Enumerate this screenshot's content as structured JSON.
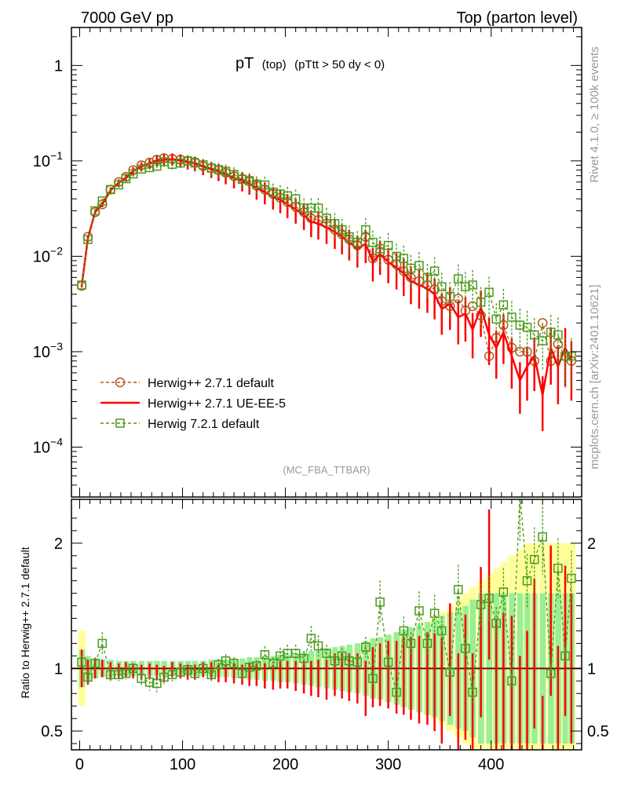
{
  "header": {
    "left": "7000 GeV pp",
    "right": "Top (parton level)"
  },
  "side_labels": {
    "rivet": "Rivet 4.1.0, ≥ 100k events",
    "mcplots": "mcplots.cern.ch [arXiv:2401.10621]"
  },
  "plot_title": {
    "main": "pT",
    "sub1": "(top)",
    "sub2": "(pTtt > 50 dy < 0)"
  },
  "analysis_label": "(MC_FBA_TTBAR)",
  "ratio_ylabel": "Ratio to Herwig++ 2.7.1 default",
  "colors": {
    "herwig_pp_default": "#b35a1f",
    "herwig_pp_ueee5": "#ff0000",
    "herwig7_default": "#4a9a1a",
    "band_yellow": "#ffff99",
    "band_green": "#99ee99",
    "axis": "#000000",
    "ratio_line": "#8b0000",
    "muted_text": "#999999"
  },
  "chart_data": [
    {
      "type": "line",
      "panel": "main",
      "xlim": [
        -8,
        488
      ],
      "ylim": [
        3e-05,
        2.5
      ],
      "yscale": "log",
      "x_ticks": [
        0,
        100,
        200,
        300,
        400
      ],
      "y_tick_labels": [
        {
          "value": 1,
          "base": "1",
          "exp": ""
        },
        {
          "value": 0.1,
          "base": "10",
          "exp": "−1"
        },
        {
          "value": 0.01,
          "base": "10",
          "exp": "−2"
        },
        {
          "value": 0.001,
          "base": "10",
          "exp": "−3"
        },
        {
          "value": 0.0001,
          "base": "10",
          "exp": "−4"
        }
      ],
      "legend": [
        {
          "label": "Herwig++ 2.7.1 default",
          "series": "herwig_pp_default"
        },
        {
          "label": "Herwig++ 2.7.1 UE-EE-5",
          "series": "herwig_pp_ueee5"
        },
        {
          "label": "Herwig 7.2.1 default",
          "series": "herwig7_default"
        }
      ],
      "series": [
        {
          "name": "Herwig++ 2.7.1 default",
          "key": "herwig_pp_default",
          "marker": "circle",
          "line": "dashed",
          "x": [
            2,
            8,
            15,
            22,
            30,
            38,
            45,
            52,
            60,
            68,
            75,
            82,
            90,
            98,
            105,
            112,
            120,
            128,
            135,
            142,
            150,
            158,
            165,
            172,
            180,
            188,
            195,
            202,
            210,
            218,
            225,
            232,
            240,
            248,
            255,
            262,
            270,
            278,
            285,
            292,
            300,
            308,
            315,
            322,
            330,
            338,
            345,
            352,
            360,
            368,
            375,
            382,
            390,
            398,
            405,
            412,
            420,
            428,
            435,
            442,
            450,
            458,
            465,
            472,
            478
          ],
          "y": [
            0.0049,
            0.016,
            0.029,
            0.035,
            0.05,
            0.06,
            0.068,
            0.08,
            0.09,
            0.096,
            0.103,
            0.107,
            0.105,
            0.103,
            0.1,
            0.097,
            0.088,
            0.084,
            0.08,
            0.075,
            0.069,
            0.065,
            0.061,
            0.055,
            0.05,
            0.045,
            0.041,
            0.037,
            0.033,
            0.029,
            0.025,
            0.024,
            0.022,
            0.019,
            0.017,
            0.015,
            0.013,
            0.016,
            0.0095,
            0.011,
            0.0092,
            0.0082,
            0.007,
            0.006,
            0.0055,
            0.005,
            0.0045,
            0.0034,
            0.003,
            0.0036,
            0.0027,
            0.003,
            0.0024,
            0.0009,
            0.0014,
            0.0019,
            0.0011,
            0.001,
            0.001,
            0.0008,
            0.002,
            0.0008,
            0.0012,
            0.0009,
            0.0008
          ]
        },
        {
          "name": "Herwig++ 2.7.1 UE-EE-5",
          "key": "herwig_pp_ueee5",
          "marker": "none",
          "line": "solid",
          "x": [
            2,
            8,
            15,
            22,
            30,
            38,
            45,
            52,
            60,
            68,
            75,
            82,
            90,
            98,
            105,
            112,
            120,
            128,
            135,
            142,
            150,
            158,
            165,
            172,
            180,
            188,
            195,
            202,
            210,
            218,
            225,
            232,
            240,
            248,
            255,
            262,
            270,
            278,
            285,
            292,
            300,
            308,
            315,
            322,
            330,
            338,
            345,
            352,
            360,
            368,
            375,
            382,
            390,
            398,
            405,
            412,
            420,
            428,
            435,
            442,
            450,
            458,
            465,
            472,
            478
          ],
          "y": [
            0.0049,
            0.0155,
            0.029,
            0.035,
            0.049,
            0.059,
            0.067,
            0.078,
            0.087,
            0.094,
            0.1,
            0.103,
            0.104,
            0.101,
            0.097,
            0.094,
            0.087,
            0.082,
            0.077,
            0.072,
            0.066,
            0.062,
            0.058,
            0.052,
            0.047,
            0.042,
            0.039,
            0.035,
            0.031,
            0.027,
            0.023,
            0.022,
            0.02,
            0.018,
            0.016,
            0.014,
            0.012,
            0.0135,
            0.0088,
            0.0105,
            0.0087,
            0.0076,
            0.0066,
            0.0055,
            0.005,
            0.0046,
            0.004,
            0.0028,
            0.0032,
            0.0023,
            0.0025,
            0.0017,
            0.0029,
            0.0015,
            0.0011,
            0.0016,
            0.0009,
            0.0005,
            0.0007,
            0.0009,
            0.00035,
            0.0011,
            0.0007,
            0.0011,
            0.0008
          ]
        },
        {
          "name": "Herwig 7.2.1 default",
          "key": "herwig7_default",
          "marker": "square",
          "line": "dashed",
          "x": [
            2,
            8,
            15,
            22,
            30,
            38,
            45,
            52,
            60,
            68,
            75,
            82,
            90,
            98,
            105,
            112,
            120,
            128,
            135,
            142,
            150,
            158,
            165,
            172,
            180,
            188,
            195,
            202,
            210,
            218,
            225,
            232,
            240,
            248,
            255,
            262,
            270,
            278,
            285,
            292,
            300,
            308,
            315,
            322,
            330,
            338,
            345,
            352,
            360,
            368,
            375,
            382,
            390,
            398,
            405,
            412,
            420,
            428,
            435,
            442,
            450,
            458,
            465,
            472,
            478
          ],
          "y": [
            0.005,
            0.015,
            0.03,
            0.038,
            0.05,
            0.056,
            0.065,
            0.073,
            0.082,
            0.085,
            0.088,
            0.098,
            0.092,
            0.095,
            0.1,
            0.095,
            0.091,
            0.084,
            0.081,
            0.078,
            0.072,
            0.064,
            0.062,
            0.057,
            0.056,
            0.047,
            0.045,
            0.043,
            0.04,
            0.032,
            0.032,
            0.032,
            0.025,
            0.022,
            0.019,
            0.016,
            0.014,
            0.019,
            0.014,
            0.012,
            0.013,
            0.01,
            0.0095,
            0.0075,
            0.008,
            0.006,
            0.007,
            0.0048,
            0.0038,
            0.0058,
            0.0048,
            0.005,
            0.0033,
            0.0042,
            0.0022,
            0.0031,
            0.0023,
            0.0019,
            0.0018,
            0.0015,
            0.0013,
            0.0016,
            0.0015,
            0.0009,
            0.0009
          ]
        }
      ]
    },
    {
      "type": "line",
      "panel": "ratio",
      "xlim": [
        -8,
        488
      ],
      "ylim": [
        0.35,
        2.35
      ],
      "x_ticks": [
        0,
        100,
        200,
        300,
        400
      ],
      "y_ticks": [
        0.5,
        1,
        2
      ],
      "ylabel": "Ratio to Herwig++ 2.7.1 default",
      "reference_line": 1,
      "band_relative_uncertainty": [
        0.3,
        0.07,
        0.05,
        0.04,
        0.035,
        0.03,
        0.03,
        0.03,
        0.03,
        0.03,
        0.03,
        0.03,
        0.03,
        0.03,
        0.03,
        0.03,
        0.03,
        0.04,
        0.04,
        0.04,
        0.05,
        0.05,
        0.06,
        0.06,
        0.07,
        0.07,
        0.08,
        0.08,
        0.09,
        0.1,
        0.11,
        0.12,
        0.13,
        0.14,
        0.15,
        0.17,
        0.18,
        0.2,
        0.22,
        0.24,
        0.26,
        0.28,
        0.3,
        0.32,
        0.35,
        0.38,
        0.4,
        0.45,
        0.5,
        0.55,
        0.6,
        0.65,
        0.7,
        0.75,
        0.8,
        0.85,
        0.9,
        0.95,
        1.0,
        1.0,
        1.0,
        1.0,
        1.0,
        1.0,
        1.0
      ],
      "series": [
        {
          "name": "Herwig++ 2.7.1 UE-EE-5",
          "key": "herwig_pp_ueee5",
          "x": [
            2,
            8,
            15,
            22,
            30,
            38,
            45,
            52,
            60,
            68,
            75,
            82,
            90,
            98,
            105,
            112,
            120,
            128,
            135,
            142,
            150,
            158,
            165,
            172,
            180,
            188,
            195,
            202,
            210,
            218,
            225,
            232,
            240,
            248,
            255,
            262,
            270,
            278,
            285,
            292,
            300,
            308,
            315,
            322,
            330,
            338,
            345,
            352,
            360,
            368,
            375,
            382,
            390,
            398,
            405,
            412,
            420,
            428,
            435,
            442,
            450,
            458,
            465,
            472,
            478
          ],
          "y": [
            1.0,
            0.97,
            1.0,
            1.0,
            0.98,
            0.98,
            0.99,
            0.98,
            0.97,
            0.98,
            0.97,
            0.96,
            0.99,
            0.98,
            0.97,
            0.97,
            0.99,
            0.98,
            0.96,
            0.96,
            0.96,
            0.95,
            0.95,
            0.95,
            0.94,
            0.93,
            0.95,
            0.95,
            0.94,
            0.93,
            0.92,
            0.92,
            0.91,
            0.95,
            0.94,
            0.93,
            0.92,
            0.84,
            0.93,
            0.95,
            0.95,
            0.93,
            0.94,
            0.92,
            0.91,
            0.92,
            0.89,
            0.82,
            1.07,
            0.64,
            0.93,
            0.57,
            1.21,
            1.67,
            0.79,
            0.84,
            0.82,
            0.5,
            0.7,
            1.12,
            0.18,
            1.38,
            0.58,
            1.22,
            1.0
          ],
          "err": [
            0.15,
            0.1,
            0.08,
            0.07,
            0.07,
            0.06,
            0.06,
            0.06,
            0.06,
            0.06,
            0.06,
            0.06,
            0.06,
            0.06,
            0.06,
            0.06,
            0.06,
            0.07,
            0.07,
            0.07,
            0.08,
            0.08,
            0.09,
            0.09,
            0.1,
            0.1,
            0.11,
            0.11,
            0.12,
            0.13,
            0.14,
            0.15,
            0.16,
            0.17,
            0.18,
            0.19,
            0.2,
            0.22,
            0.24,
            0.25,
            0.27,
            0.29,
            0.31,
            0.33,
            0.35,
            0.37,
            0.39,
            0.42,
            0.45,
            0.48,
            0.5,
            0.55,
            0.6,
            0.6,
            0.6,
            0.6,
            0.6,
            0.6,
            0.6,
            0.6,
            0.6,
            0.6,
            0.6,
            0.6,
            0.6
          ]
        },
        {
          "name": "Herwig 7.2.1 default",
          "key": "herwig7_default",
          "x": [
            2,
            8,
            15,
            22,
            30,
            38,
            45,
            52,
            60,
            68,
            75,
            82,
            90,
            98,
            105,
            112,
            120,
            128,
            135,
            142,
            150,
            158,
            165,
            172,
            180,
            188,
            195,
            202,
            210,
            218,
            225,
            232,
            240,
            248,
            255,
            262,
            270,
            278,
            285,
            292,
            300,
            308,
            315,
            322,
            330,
            338,
            345,
            352,
            360,
            368,
            375,
            382,
            390,
            398,
            405,
            412,
            420,
            428,
            435,
            442,
            450,
            458,
            465,
            472,
            478
          ],
          "y": [
            1.05,
            0.93,
            1.04,
            1.2,
            0.95,
            0.95,
            0.96,
            1.0,
            0.92,
            0.89,
            0.88,
            0.93,
            0.95,
            0.97,
            0.99,
            0.96,
            1.0,
            0.95,
            1.03,
            1.06,
            1.04,
            0.96,
            1.01,
            1.02,
            1.11,
            1.04,
            1.1,
            1.12,
            1.12,
            1.08,
            1.24,
            1.18,
            1.12,
            1.06,
            1.1,
            1.06,
            1.05,
            1.17,
            0.92,
            1.53,
            1.05,
            0.81,
            1.3,
            1.2,
            1.46,
            1.2,
            1.44,
            1.3,
            0.97,
            1.63,
            1.16,
            0.81,
            1.51,
            1.56,
            1.36,
            1.61,
            0.9,
            2.4,
            1.7,
            1.87,
            2.05,
            0.96,
            1.8,
            1.1,
            1.72
          ]
        }
      ]
    }
  ]
}
